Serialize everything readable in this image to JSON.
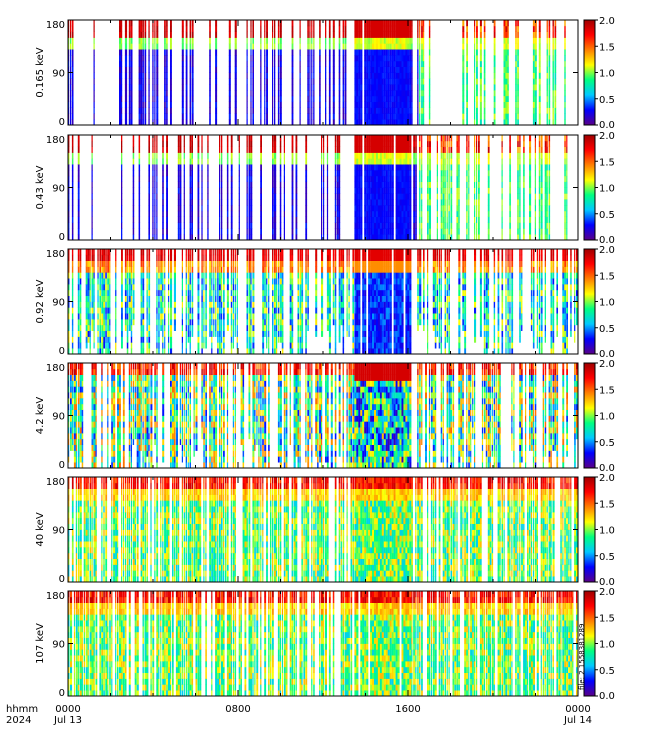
{
  "chart_data": {
    "type": "heatmap",
    "time_axis": {
      "ticks": [
        {
          "hhmm": "0000",
          "date": "Jul 13",
          "hour": 0
        },
        {
          "hhmm": "0800",
          "date": "",
          "hour": 8
        },
        {
          "hhmm": "1600",
          "date": "",
          "hour": 16
        },
        {
          "hhmm": "0000",
          "date": "Jul 14",
          "hour": 24
        }
      ],
      "range_hours": [
        0,
        24
      ],
      "row1_label": "hhmm",
      "row2_label": "2024"
    },
    "pitch_angle_axis": {
      "ticks": [
        "0",
        "90",
        "180"
      ],
      "range_deg": [
        0,
        180
      ]
    },
    "colorbar": {
      "ticks": [
        "0.0",
        "0.5",
        "1.0",
        "1.5",
        "2.0"
      ],
      "range": [
        0,
        2
      ],
      "colormap": "rainbow",
      "stops": [
        "#5a0087",
        "#0000ff",
        "#00c8ff",
        "#00ff80",
        "#ffff00",
        "#ff8000",
        "#ff0000",
        "#a00000"
      ]
    },
    "panels": [
      {
        "ylabel": "0.165 keV",
        "seed": 11,
        "presence": 0.35,
        "gap_hours": [
          1.3,
          2.4
        ],
        "profile": "low"
      },
      {
        "ylabel": "0.43 keV",
        "seed": 23,
        "presence": 0.35,
        "gap_hours": [
          1.3,
          2.4
        ],
        "profile": "low"
      },
      {
        "ylabel": "0.92 keV",
        "seed": 37,
        "presence": 0.55,
        "gap_hours": [],
        "profile": "mid"
      },
      {
        "ylabel": "4.2 keV",
        "seed": 41,
        "presence": 0.6,
        "gap_hours": [],
        "profile": "mid2"
      },
      {
        "ylabel": "40 keV",
        "seed": 53,
        "presence": 0.75,
        "gap_hours": [],
        "profile": "high"
      },
      {
        "ylabel": "107 keV",
        "seed": 67,
        "presence": 0.75,
        "gap_hours": [],
        "profile": "high"
      }
    ],
    "grid": false
  },
  "watermark": "file: 2 1558381289"
}
